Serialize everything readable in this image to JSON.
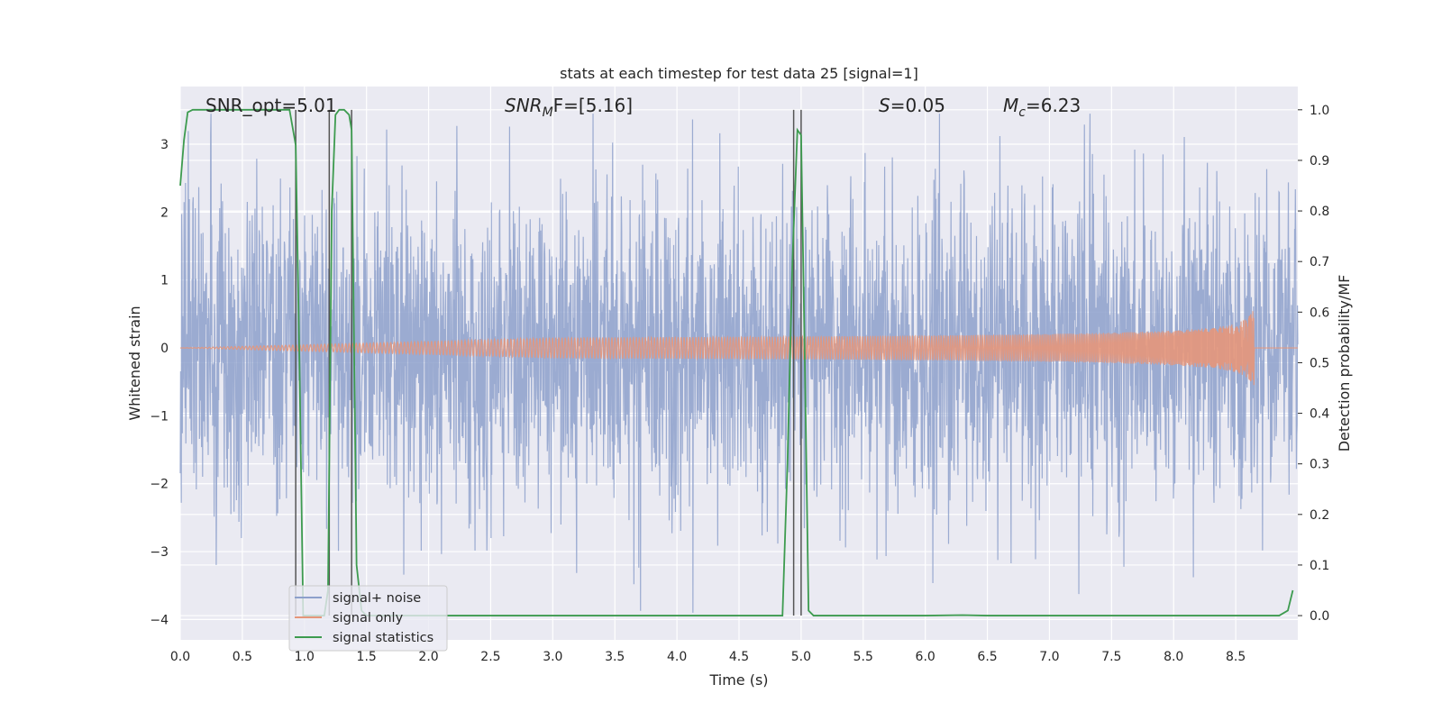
{
  "chart_data": {
    "type": "line",
    "title": "stats at each timestep for test data 25 [signal=1]",
    "xlabel": "Time (s)",
    "ylabel_left": "Whitened strain",
    "ylabel_right": "Detection probability/MF",
    "xlim": [
      0,
      9.0
    ],
    "ylim_left": [
      -4.3,
      3.85
    ],
    "ylim_right": [
      -0.048,
      1.046
    ],
    "x_ticks": [
      0.0,
      0.5,
      1.0,
      1.5,
      2.0,
      2.5,
      3.0,
      3.5,
      4.0,
      4.5,
      5.0,
      5.5,
      6.0,
      6.5,
      7.0,
      7.5,
      8.0,
      8.5
    ],
    "x_tick_labels": [
      "0.0",
      "0.5",
      "1.0",
      "1.5",
      "2.0",
      "2.5",
      "3.0",
      "3.5",
      "4.0",
      "4.5",
      "5.0",
      "5.5",
      "6.0",
      "6.5",
      "7.0",
      "7.5",
      "8.0",
      "8.5"
    ],
    "y_left_ticks": [
      3,
      2,
      1,
      0,
      -1,
      -2,
      -3,
      -4
    ],
    "y_left_tick_labels": [
      "3",
      "2",
      "1",
      "0",
      "−1",
      "−2",
      "−3",
      "−4"
    ],
    "y_right_ticks": [
      1.0,
      0.9,
      0.8,
      0.7,
      0.6,
      0.5,
      0.4,
      0.3,
      0.2,
      0.1,
      0.0
    ],
    "y_right_tick_labels": [
      "1.0",
      "0.9",
      "0.8",
      "0.7",
      "0.6",
      "0.5",
      "0.4",
      "0.3",
      "0.2",
      "0.1",
      "0.0"
    ],
    "grid": true,
    "legend_placement": "lower-left",
    "annotations": {
      "snr_opt": "SNR_opt=5.01",
      "snr_mf_base": "SNR",
      "snr_mf_sub": "M",
      "snr_mf_rest": "F=[5.16]",
      "s_symbol": "S",
      "s_value": "=0.05",
      "mc_symbol": "M",
      "mc_sub": "c",
      "mc_value": "=6.23"
    },
    "series": [
      {
        "name": "signal+ noise",
        "color": "#8da0cb",
        "axis": "left",
        "description_amplitude": 1.9,
        "x_range": [
          0,
          9.0
        ]
      },
      {
        "name": "signal only",
        "color": "#e5967a",
        "axis": "left",
        "chirp_end": 8.65,
        "peak_amplitude": 0.62
      },
      {
        "name": "signal statistics",
        "color": "#3d9b4f",
        "axis": "right",
        "x": [
          0.0,
          0.03,
          0.06,
          0.1,
          0.15,
          0.2,
          0.3,
          0.4,
          0.5,
          0.6,
          0.7,
          0.8,
          0.88,
          0.93,
          0.96,
          0.99,
          1.02,
          1.05,
          1.08,
          1.12,
          1.16,
          1.19,
          1.22,
          1.25,
          1.28,
          1.32,
          1.36,
          1.38,
          1.42,
          1.46,
          1.5,
          1.6,
          2.0,
          3.0,
          4.0,
          4.5,
          4.85,
          4.89,
          4.93,
          4.97,
          5.0,
          5.03,
          5.06,
          5.1,
          5.2,
          5.5,
          6.0,
          6.3,
          6.5,
          7.0,
          7.5,
          8.0,
          8.5,
          8.85,
          8.92,
          8.96
        ],
        "y": [
          0.85,
          0.94,
          0.995,
          1.0,
          1.0,
          1.0,
          1.0,
          1.0,
          1.0,
          1.0,
          1.0,
          1.0,
          1.0,
          0.93,
          0.5,
          0.0,
          0.0,
          0.0,
          0.0,
          0.0,
          0.0,
          0.05,
          0.8,
          0.99,
          1.0,
          1.0,
          0.99,
          0.96,
          0.1,
          0.01,
          0.0,
          0.0,
          0.0,
          0.0,
          0.0,
          0.0,
          0.0,
          0.3,
          0.7,
          0.96,
          0.95,
          0.5,
          0.01,
          0.0,
          0.0,
          0.0,
          0.0,
          0.001,
          0.0,
          0.0,
          0.0,
          0.0,
          0.0,
          0.0,
          0.01,
          0.05
        ]
      }
    ],
    "vertical_lines_x": [
      0.93,
      1.2,
      1.38,
      4.94,
      5.0
    ],
    "vertical_lines_color": "#555555"
  }
}
